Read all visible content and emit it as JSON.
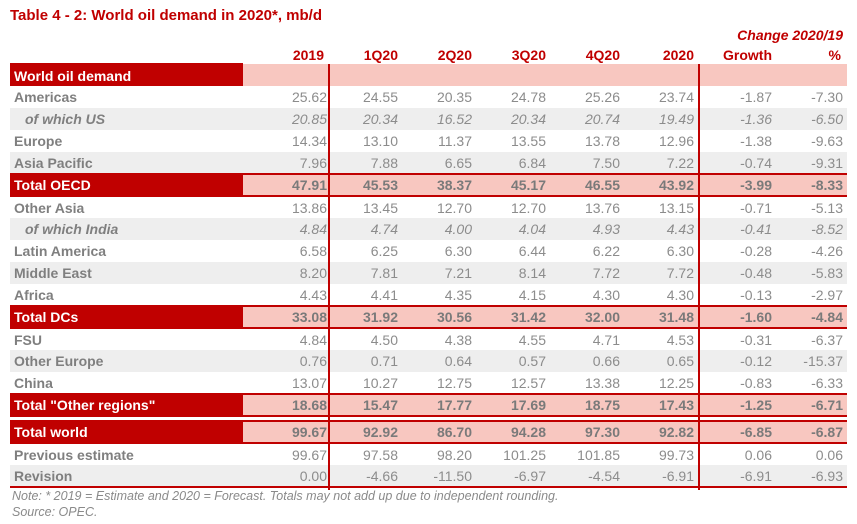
{
  "title": "Table 4 - 2: World oil demand in 2020*, mb/d",
  "change_header": "Change 2020/19",
  "columns": [
    "2019",
    "1Q20",
    "2Q20",
    "3Q20",
    "4Q20",
    "2020",
    "Growth",
    "%"
  ],
  "rows": [
    {
      "label": "World oil demand",
      "type": "band-start",
      "values": [
        "",
        "",
        "",
        "",
        "",
        "",
        "",
        ""
      ]
    },
    {
      "label": "Americas",
      "type": "data",
      "shade": false,
      "values": [
        "25.62",
        "24.55",
        "20.35",
        "24.78",
        "25.26",
        "23.74",
        "-1.87",
        "-7.30"
      ]
    },
    {
      "label": "of which US",
      "type": "sub",
      "shade": true,
      "values": [
        "20.85",
        "20.34",
        "16.52",
        "20.34",
        "20.74",
        "19.49",
        "-1.36",
        "-6.50"
      ]
    },
    {
      "label": "Europe",
      "type": "data",
      "shade": false,
      "values": [
        "14.34",
        "13.10",
        "11.37",
        "13.55",
        "13.78",
        "12.96",
        "-1.38",
        "-9.63"
      ]
    },
    {
      "label": "Asia Pacific",
      "type": "data",
      "shade": true,
      "values": [
        "7.96",
        "7.88",
        "6.65",
        "6.84",
        "7.50",
        "7.22",
        "-0.74",
        "-9.31"
      ]
    },
    {
      "label": "Total OECD",
      "type": "band",
      "values": [
        "47.91",
        "45.53",
        "38.37",
        "45.17",
        "46.55",
        "43.92",
        "-3.99",
        "-8.33"
      ]
    },
    {
      "label": "Other Asia",
      "type": "data",
      "shade": false,
      "values": [
        "13.86",
        "13.45",
        "12.70",
        "12.70",
        "13.76",
        "13.15",
        "-0.71",
        "-5.13"
      ]
    },
    {
      "label": "of which India",
      "type": "sub",
      "shade": true,
      "values": [
        "4.84",
        "4.74",
        "4.00",
        "4.04",
        "4.93",
        "4.43",
        "-0.41",
        "-8.52"
      ]
    },
    {
      "label": "Latin America",
      "type": "data",
      "shade": false,
      "values": [
        "6.58",
        "6.25",
        "6.30",
        "6.44",
        "6.22",
        "6.30",
        "-0.28",
        "-4.26"
      ]
    },
    {
      "label": "Middle East",
      "type": "data",
      "shade": true,
      "values": [
        "8.20",
        "7.81",
        "7.21",
        "8.14",
        "7.72",
        "7.72",
        "-0.48",
        "-5.83"
      ]
    },
    {
      "label": "Africa",
      "type": "data",
      "shade": false,
      "values": [
        "4.43",
        "4.41",
        "4.35",
        "4.15",
        "4.30",
        "4.30",
        "-0.13",
        "-2.97"
      ]
    },
    {
      "label": "Total DCs",
      "type": "band",
      "values": [
        "33.08",
        "31.92",
        "30.56",
        "31.42",
        "32.00",
        "31.48",
        "-1.60",
        "-4.84"
      ]
    },
    {
      "label": "FSU",
      "type": "data",
      "shade": false,
      "values": [
        "4.84",
        "4.50",
        "4.38",
        "4.55",
        "4.71",
        "4.53",
        "-0.31",
        "-6.37"
      ]
    },
    {
      "label": "Other Europe",
      "type": "data",
      "shade": true,
      "values": [
        "0.76",
        "0.71",
        "0.64",
        "0.57",
        "0.66",
        "0.65",
        "-0.12",
        "-15.37"
      ]
    },
    {
      "label": "China",
      "type": "data",
      "shade": false,
      "values": [
        "13.07",
        "10.27",
        "12.75",
        "12.57",
        "13.38",
        "12.25",
        "-0.83",
        "-6.33"
      ]
    },
    {
      "label": "Total \"Other regions\"",
      "type": "band",
      "values": [
        "18.68",
        "15.47",
        "17.77",
        "17.69",
        "18.75",
        "17.43",
        "-1.25",
        "-6.71"
      ]
    },
    {
      "label": "",
      "type": "spacer",
      "values": []
    },
    {
      "label": "Total world",
      "type": "band",
      "values": [
        "99.67",
        "92.92",
        "86.70",
        "94.28",
        "97.30",
        "92.82",
        "-6.85",
        "-6.87"
      ]
    },
    {
      "label": "Previous estimate",
      "type": "data",
      "shade": false,
      "values": [
        "99.67",
        "97.58",
        "98.20",
        "101.25",
        "101.85",
        "99.73",
        "0.06",
        "0.06"
      ]
    },
    {
      "label": "Revision",
      "type": "data",
      "shade": true,
      "last": true,
      "values": [
        "0.00",
        "-4.66",
        "-11.50",
        "-6.97",
        "-4.54",
        "-6.91",
        "-6.91",
        "-6.93"
      ]
    }
  ],
  "note": "Note: * 2019 = Estimate and 2020 = Forecast. Totals may not add up due to independent rounding.",
  "source": "Source: OPEC.",
  "colors": {
    "accent_red": "#c00000",
    "band_pink": "#f8c7c0",
    "row_shade": "#eeeeee",
    "text_gray": "#8c8c8c"
  }
}
